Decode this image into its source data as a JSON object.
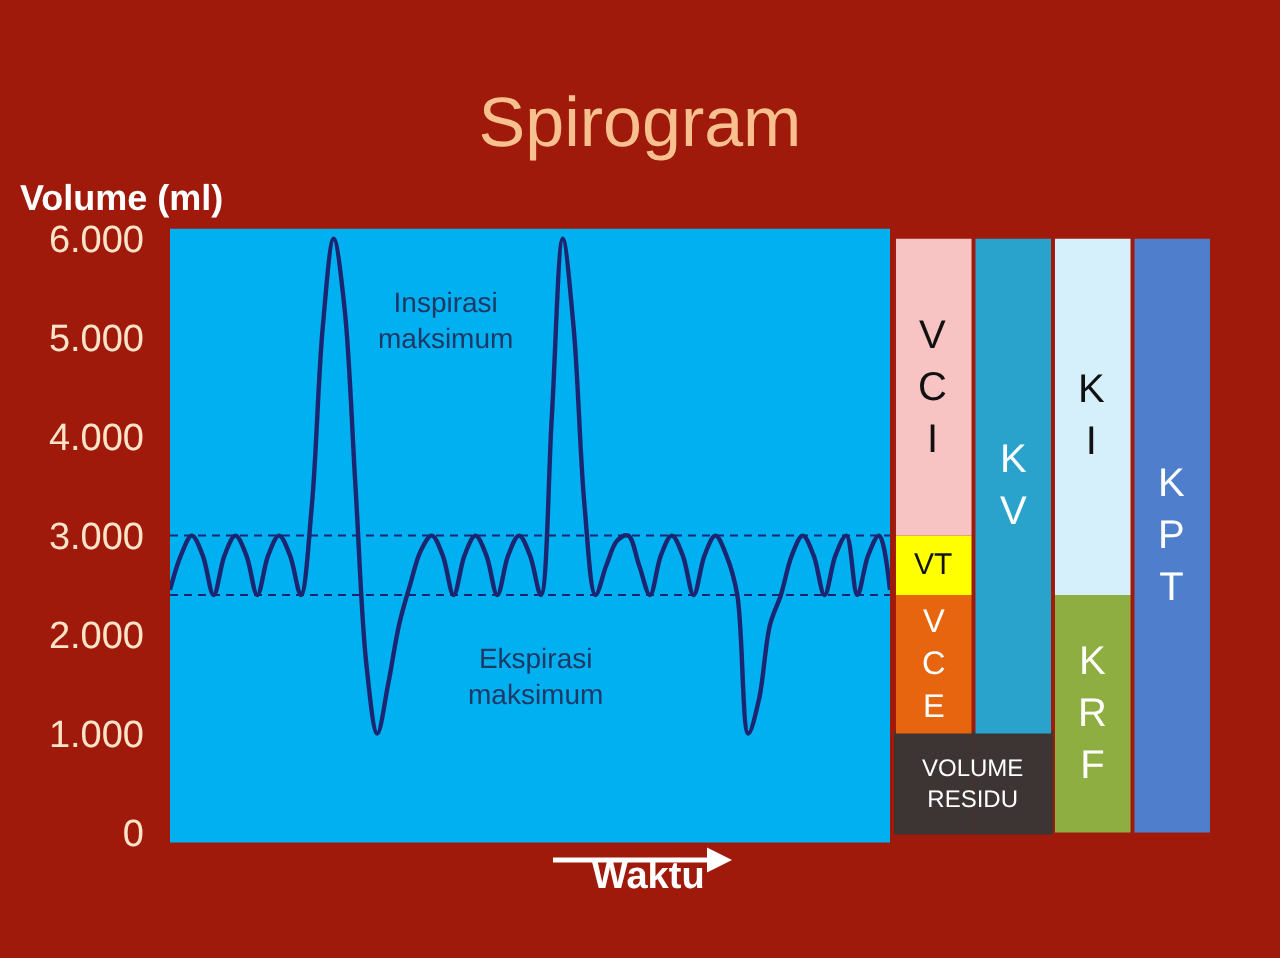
{
  "chart_data": [
    {
      "type": "line",
      "title": "Spirogram",
      "xlabel": "Waktu",
      "ylabel": "Volume (ml)",
      "categories": [
        null,
        null,
        null,
        null,
        null,
        null,
        null,
        null,
        null,
        null,
        null,
        null,
        null,
        null,
        null,
        null,
        null,
        null,
        null,
        null,
        null,
        null,
        null,
        null,
        null,
        null,
        null,
        null,
        null,
        null,
        null,
        null,
        null,
        null,
        null,
        null,
        null,
        null,
        null,
        null,
        null,
        null,
        null,
        null,
        null,
        null,
        null,
        null,
        null,
        null,
        null,
        null,
        null,
        null,
        null,
        null,
        null,
        null,
        null,
        null,
        null,
        null,
        null,
        null,
        null,
        null,
        null
      ],
      "series": [
        {
          "color": "#1c2670",
          "values": [
            2450,
            2800,
            3000,
            2800,
            2400,
            2800,
            3000,
            2800,
            2400,
            2800,
            3000,
            2800,
            2400,
            3300,
            5100,
            6000,
            5300,
            3500,
            1700,
            1000,
            1500,
            2100,
            2500,
            2850,
            3000,
            2800,
            2400,
            2800,
            3000,
            2800,
            2400,
            2800,
            3000,
            2800,
            2400,
            4200,
            6000,
            5100,
            3300,
            2400,
            2700,
            2950,
            3000,
            2700,
            2400,
            2800,
            3000,
            2800,
            2400,
            2800,
            3000,
            2800,
            2400,
            1000,
            1350,
            2100,
            2400,
            2800,
            3000,
            2800,
            2400,
            2800,
            3000,
            2400,
            2800,
            3000,
            2450
          ]
        }
      ],
      "ylim": [
        -100,
        6100
      ],
      "yticks": [
        0,
        {
          "value": 1000,
          "label": "1.000"
        },
        {
          "value": 2000,
          "label": "2.000"
        },
        {
          "value": 3000,
          "label": "3.000"
        },
        {
          "value": 4000,
          "label": "4.000"
        },
        {
          "value": 5000,
          "label": "5.000"
        },
        {
          "value": 6000,
          "label": "6.000"
        }
      ],
      "ref_lines": [
        {
          "axis": "y",
          "value": 3000,
          "color": "#1c2670",
          "line_style": "dashed"
        },
        {
          "axis": "y",
          "value": 2400,
          "color": "#1c2670",
          "line_style": "dashed"
        }
      ],
      "annotations": [
        "Inspirasi maksimum",
        "Ekspirasi maksimum"
      ],
      "tick_labels": "y"
    },
    {
      "type": "bar",
      "stacked": true,
      "categories": [
        null,
        null,
        null,
        null
      ],
      "series": [
        {
          "name": "VOLUME RESIDU",
          "color": "#3d3533",
          "values": [
            1000,
            1000,
            null,
            null
          ]
        },
        {
          "name": "VCE",
          "color": "#e8650f",
          "values": [
            1400,
            null,
            null,
            null
          ]
        },
        {
          "name": "VT",
          "color": "#ffff00",
          "values": [
            600,
            null,
            null,
            null
          ]
        },
        {
          "name": "VCI",
          "color": "#f7c3c3",
          "values": [
            3000,
            null,
            null,
            null
          ]
        },
        {
          "name": "KV",
          "color": "#2aa3cc",
          "values": [
            null,
            5000,
            null,
            null
          ]
        },
        {
          "name": "KRF",
          "color": "#8fae42",
          "values": [
            null,
            null,
            2400,
            null
          ]
        },
        {
          "name": "KI",
          "color": "#d5f0fb",
          "values": [
            null,
            null,
            3600,
            null
          ]
        },
        {
          "name": "KPT",
          "color": "#4f7fcc",
          "values": [
            null,
            null,
            null,
            6000
          ]
        }
      ],
      "ylim": [
        -100,
        6100
      ],
      "tick_labels": false
    }
  ]
}
